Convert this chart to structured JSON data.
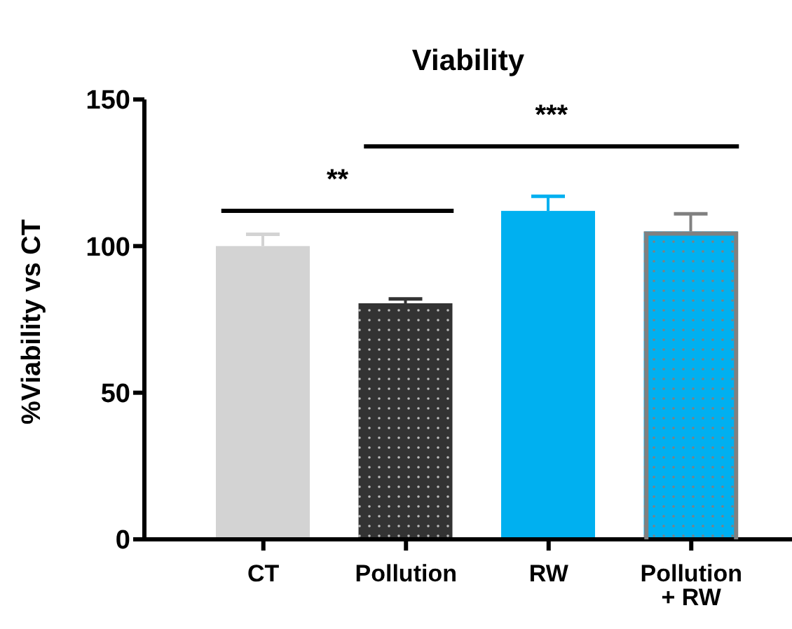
{
  "chart_data": {
    "type": "bar",
    "title": "Viability",
    "ylabel": "%Viability vs CT",
    "categories": [
      "CT",
      "Pollution",
      "RW",
      "Pollution + RW"
    ],
    "values": [
      100,
      80.5,
      112,
      105
    ],
    "errors": [
      4,
      1.5,
      5,
      6
    ],
    "colors": [
      "#d3d3d3",
      "#333333",
      "#00b0f0",
      "#00b0f0"
    ],
    "ylim": [
      0,
      150
    ],
    "yticks": [
      0,
      50,
      100,
      150
    ],
    "annotations": [
      "**",
      "***"
    ]
  }
}
